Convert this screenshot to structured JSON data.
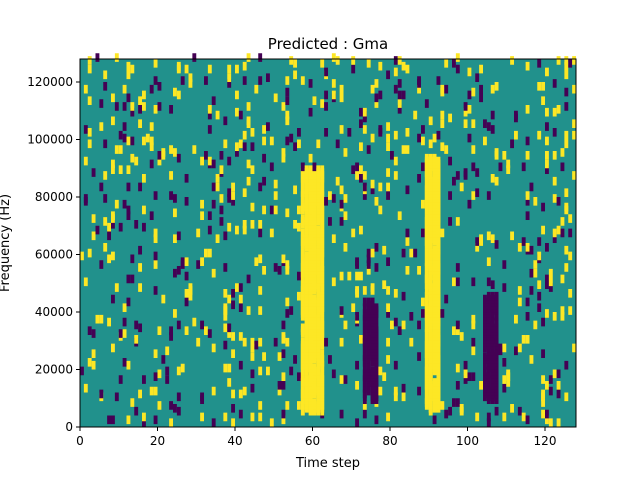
{
  "chart_data": {
    "type": "heatmap",
    "title": "Predicted : Gma",
    "xlabel": "Time step",
    "ylabel": "Frequency (Hz)",
    "xlim": [
      0,
      128
    ],
    "ylim": [
      0,
      128000
    ],
    "xticks": [
      0,
      20,
      40,
      60,
      80,
      100,
      120
    ],
    "xtick_labels": [
      "0",
      "20",
      "40",
      "60",
      "80",
      "100",
      "120"
    ],
    "yticks": [
      0,
      20000,
      40000,
      60000,
      80000,
      100000,
      120000
    ],
    "ytick_labels": [
      "0",
      "20000",
      "40000",
      "60000",
      "80000",
      "100000",
      "120000"
    ],
    "grid": false,
    "colormap": "viridis",
    "background_color": "#21918c",
    "high_color": "#fde725",
    "low_color": "#440154",
    "rows": 128,
    "cols": 128,
    "bright_bands": [
      {
        "x": [
          57,
          62
        ],
        "y": [
          4000,
          88000
        ]
      },
      {
        "x": [
          89,
          92
        ],
        "y": [
          5000,
          92000
        ]
      }
    ],
    "dark_bands": [
      {
        "x": [
          73,
          76
        ],
        "y": [
          8000,
          42000
        ]
      },
      {
        "x": [
          104,
          107
        ],
        "y": [
          8000,
          44000
        ]
      }
    ]
  }
}
